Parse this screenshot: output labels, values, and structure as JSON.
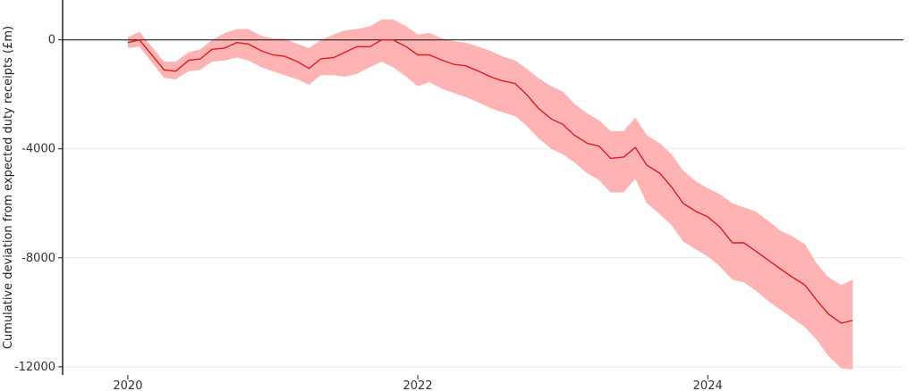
{
  "chart_data": {
    "type": "area",
    "title": "",
    "xlabel": "",
    "ylabel": "Cumulative deviation from expected duty receipts (£m)",
    "xlim": [
      2019.55,
      2025.35
    ],
    "ylim": [
      -12300,
      1300
    ],
    "x_ticks": [
      2020,
      2022,
      2024
    ],
    "x_tick_labels": [
      "2020",
      "2022",
      "2024"
    ],
    "y_ticks": [
      0,
      -4000,
      -8000,
      -12000
    ],
    "y_tick_labels": [
      "0",
      "-4000",
      "-8000",
      "-12000"
    ],
    "grid": "horizontal",
    "legend": "none",
    "colors": {
      "line": "#e31a1c",
      "band": "#ffb3b3",
      "zero_line": "#222222",
      "grid": "#e8e8e8",
      "axis": "#222222"
    },
    "x": [
      2020.0,
      2020.08,
      2020.25,
      2020.33,
      2020.42,
      2020.5,
      2020.58,
      2020.67,
      2020.75,
      2020.83,
      2020.92,
      2021.0,
      2021.08,
      2021.17,
      2021.25,
      2021.33,
      2021.42,
      2021.5,
      2021.58,
      2021.67,
      2021.75,
      2021.83,
      2021.92,
      2022.0,
      2022.08,
      2022.17,
      2022.25,
      2022.33,
      2022.42,
      2022.5,
      2022.58,
      2022.67,
      2022.75,
      2022.83,
      2022.92,
      2023.0,
      2023.08,
      2023.17,
      2023.25,
      2023.33,
      2023.42,
      2023.5,
      2023.58,
      2023.67,
      2023.75,
      2023.83,
      2023.92,
      2024.0,
      2024.08,
      2024.17,
      2024.25,
      2024.33,
      2024.42,
      2024.5,
      2024.58,
      2024.67,
      2024.75,
      2024.83,
      2024.92,
      2025.0
    ],
    "series": [
      {
        "values": [
          -100,
          0,
          -1100,
          -1150,
          -750,
          -700,
          -350,
          -300,
          -100,
          -150,
          -400,
          -550,
          -600,
          -800,
          -1050,
          -700,
          -650,
          -450,
          -250,
          -250,
          0,
          0,
          -250,
          -550,
          -550,
          -750,
          -900,
          -950,
          -1150,
          -1350,
          -1500,
          -1600,
          -2000,
          -2500,
          -2900,
          -3100,
          -3500,
          -3800,
          -3900,
          -4350,
          -4300,
          -3950,
          -4600,
          -4900,
          -5400,
          -6000,
          -6300,
          -6500,
          -6850,
          -7450,
          -7450,
          -7750,
          -8100,
          -8400,
          -8700,
          -9000,
          -9550,
          -10050,
          -10400,
          -10300
        ],
        "lower": [
          -300,
          -250,
          -1400,
          -1450,
          -1150,
          -1100,
          -800,
          -750,
          -650,
          -750,
          -1000,
          -1150,
          -1300,
          -1450,
          -1650,
          -1300,
          -1300,
          -1350,
          -1250,
          -1000,
          -800,
          -1000,
          -1350,
          -1700,
          -1550,
          -1800,
          -1950,
          -2100,
          -2300,
          -2500,
          -2650,
          -2800,
          -3150,
          -3600,
          -4000,
          -4200,
          -4500,
          -4900,
          -5150,
          -5600,
          -5600,
          -5100,
          -6000,
          -6400,
          -6800,
          -7400,
          -7700,
          -7950,
          -8300,
          -8800,
          -8900,
          -9200,
          -9600,
          -9900,
          -10200,
          -10550,
          -11000,
          -11600,
          -12050,
          -12100
        ],
        "upper": [
          100,
          300,
          -800,
          -800,
          -450,
          -350,
          0,
          250,
          400,
          400,
          150,
          50,
          50,
          -150,
          -300,
          0,
          200,
          350,
          400,
          500,
          750,
          750,
          500,
          200,
          250,
          50,
          -50,
          -100,
          -250,
          -400,
          -600,
          -750,
          -1050,
          -1400,
          -1700,
          -1900,
          -2350,
          -2700,
          -2950,
          -3350,
          -3350,
          -2850,
          -3500,
          -3800,
          -4200,
          -4800,
          -5200,
          -5450,
          -5650,
          -6000,
          -6150,
          -6300,
          -6650,
          -7000,
          -7200,
          -7500,
          -8200,
          -8700,
          -9000,
          -8800
        ]
      }
    ]
  }
}
